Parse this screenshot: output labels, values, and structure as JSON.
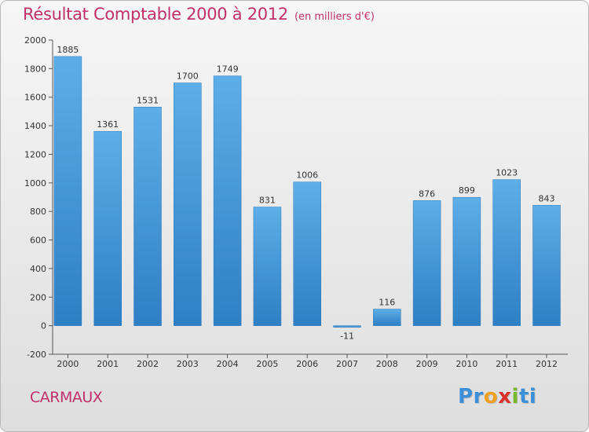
{
  "header": {
    "title": "Résultat Comptable 2000 à 2012",
    "subtitle": "(en milliers d'€)"
  },
  "footer": {
    "town": "CARMAUX",
    "logo_letters": [
      "P",
      "r",
      "o",
      "x",
      "i",
      "t",
      "i"
    ],
    "logo_colors": [
      "#3a8fd8",
      "#3a8fd8",
      "#f0a020",
      "#d8302a",
      "#7ab830",
      "#3a8fd8",
      "#3a8fd8"
    ]
  },
  "colors": {
    "title": "#c0306a",
    "bar_top": "#5eaee8",
    "bar_bottom": "#2e7fc4",
    "axis": "#444444"
  },
  "chart_data": {
    "type": "bar",
    "title": "Résultat Comptable 2000 à 2012",
    "subtitle": "(en milliers d'€)",
    "categories": [
      "2000",
      "2001",
      "2002",
      "2003",
      "2004",
      "2005",
      "2006",
      "2007",
      "2008",
      "2009",
      "2010",
      "2011",
      "2012"
    ],
    "values": [
      1885,
      1361,
      1531,
      1700,
      1749,
      831,
      1006,
      -11,
      116,
      876,
      899,
      1023,
      843
    ],
    "value_labels": [
      "1885",
      "1361",
      "1531",
      "1700",
      "1749",
      "831",
      "1006",
      "-11",
      "116",
      "876",
      "899",
      "1023",
      "843"
    ],
    "ylim": [
      -200,
      2000
    ],
    "yticks": [
      -200,
      0,
      200,
      400,
      600,
      800,
      1000,
      1200,
      1400,
      1600,
      1800,
      2000
    ],
    "ytick_labels": [
      "-200",
      "0",
      "200",
      "400",
      "600",
      "800",
      "1000",
      "1200",
      "1400",
      "1600",
      "1800",
      "2000"
    ],
    "xlabel": "",
    "ylabel": "",
    "grid": false
  }
}
